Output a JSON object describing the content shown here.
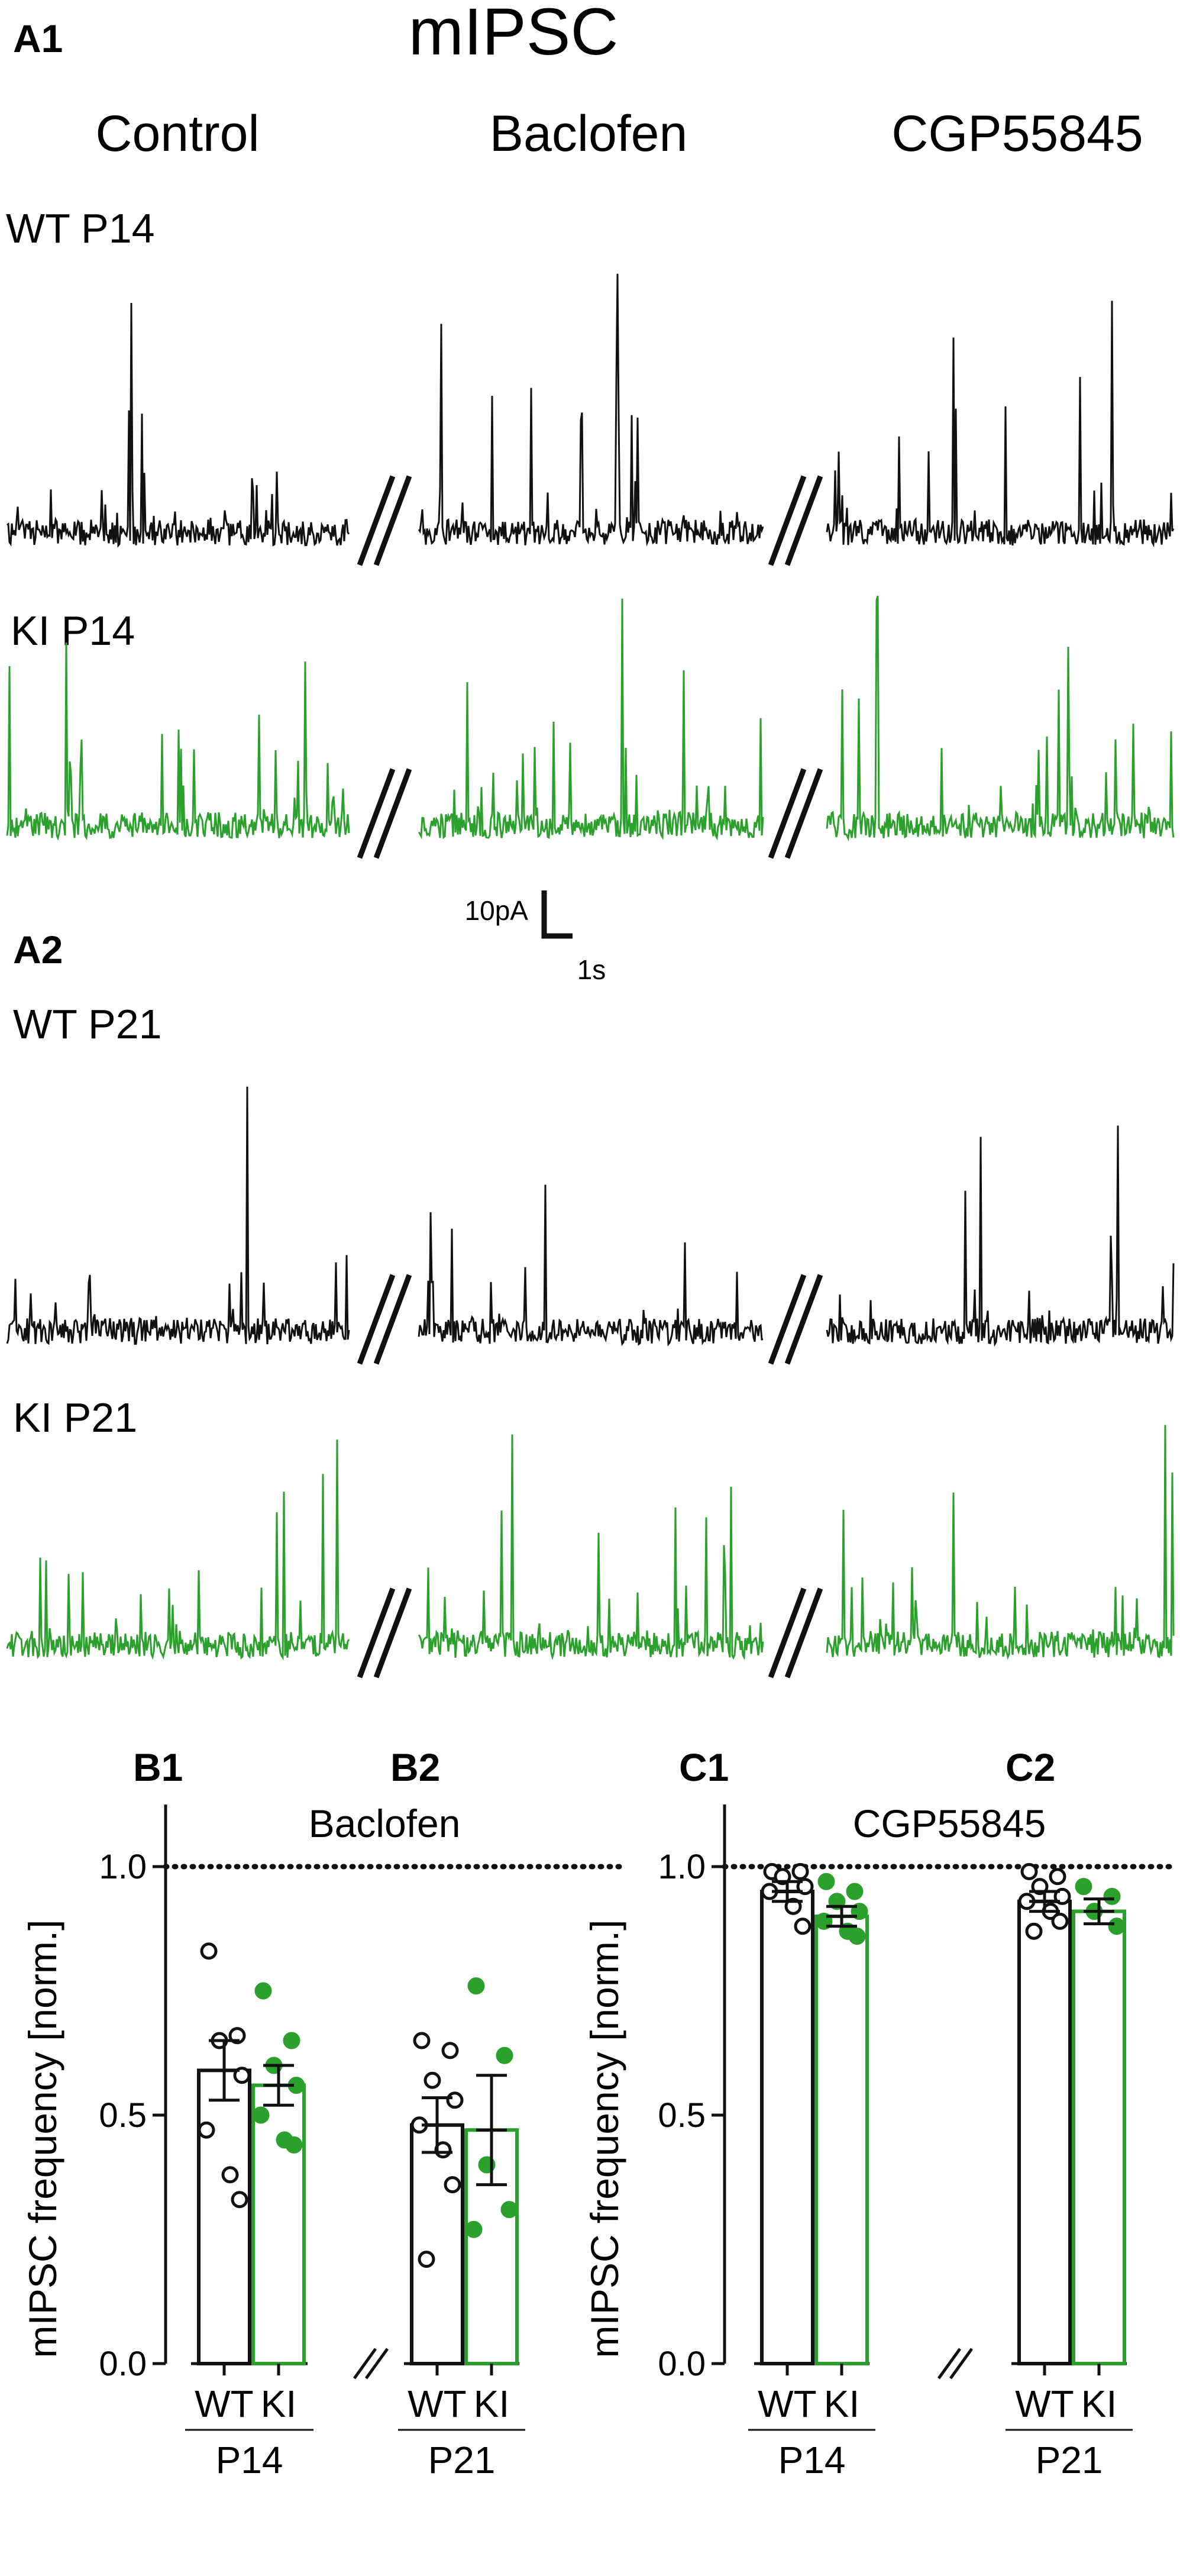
{
  "title": "mIPSC",
  "panels": {
    "a1": "A1",
    "a2": "A2",
    "b1": "B1",
    "b2": "B2",
    "c1": "C1",
    "c2": "C2"
  },
  "columns": [
    "Control",
    "Baclofen",
    "CGP55845"
  ],
  "trace_rows": [
    {
      "label": "WT P14",
      "color": "#111111"
    },
    {
      "label": "KI P14",
      "color": "#2ca02c"
    },
    {
      "label": "WT P21",
      "color": "#111111"
    },
    {
      "label": "KI P21",
      "color": "#2ca02c"
    }
  ],
  "scale_bar": {
    "y_label": "10pA",
    "x_label": "1s"
  },
  "colors": {
    "wt": "#111111",
    "ki": "#2ca02c"
  },
  "chart_data": [
    {
      "type": "bar",
      "title": "Baclofen",
      "ylabel": "mIPSC frequency [norm.]",
      "ylim": [
        0,
        1.05
      ],
      "yticks": [
        "0.0",
        "0.5",
        "1.0"
      ],
      "reference_line": 1.0,
      "groups": [
        {
          "panel": "B1",
          "age": "P14",
          "categories": [
            "WT",
            "KI"
          ],
          "series": [
            {
              "name": "WT",
              "mean": 0.59,
              "sem": 0.06,
              "points": [
                0.83,
                0.66,
                0.65,
                0.58,
                0.47,
                0.38,
                0.33
              ]
            },
            {
              "name": "KI",
              "mean": 0.56,
              "sem": 0.04,
              "points": [
                0.75,
                0.65,
                0.6,
                0.56,
                0.5,
                0.45,
                0.44
              ]
            }
          ]
        },
        {
          "panel": "B2",
          "age": "P21",
          "categories": [
            "WT",
            "KI"
          ],
          "series": [
            {
              "name": "WT",
              "mean": 0.48,
              "sem": 0.055,
              "points": [
                0.65,
                0.63,
                0.57,
                0.53,
                0.48,
                0.43,
                0.36,
                0.21
              ]
            },
            {
              "name": "KI",
              "mean": 0.47,
              "sem": 0.11,
              "points": [
                0.76,
                0.62,
                0.4,
                0.31,
                0.27
              ]
            }
          ]
        }
      ]
    },
    {
      "type": "bar",
      "title": "CGP55845",
      "ylabel": "mIPSC frequency [norm.]",
      "ylim": [
        0,
        1.05
      ],
      "yticks": [
        "0.0",
        "0.5",
        "1.0"
      ],
      "reference_line": 1.0,
      "groups": [
        {
          "panel": "C1",
          "age": "P14",
          "categories": [
            "WT",
            "KI"
          ],
          "series": [
            {
              "name": "WT",
              "mean": 0.95,
              "sem": 0.02,
              "points": [
                0.99,
                0.99,
                0.98,
                0.96,
                0.95,
                0.92,
                0.88
              ]
            },
            {
              "name": "KI",
              "mean": 0.9,
              "sem": 0.02,
              "points": [
                0.97,
                0.95,
                0.93,
                0.91,
                0.89,
                0.87,
                0.86
              ]
            }
          ]
        },
        {
          "panel": "C2",
          "age": "P21",
          "categories": [
            "WT",
            "KI"
          ],
          "series": [
            {
              "name": "WT",
              "mean": 0.93,
              "sem": 0.02,
              "points": [
                0.99,
                0.98,
                0.96,
                0.94,
                0.93,
                0.91,
                0.89,
                0.87
              ]
            },
            {
              "name": "KI",
              "mean": 0.91,
              "sem": 0.025,
              "points": [
                0.96,
                0.94,
                0.91,
                0.88
              ]
            }
          ]
        }
      ]
    }
  ]
}
